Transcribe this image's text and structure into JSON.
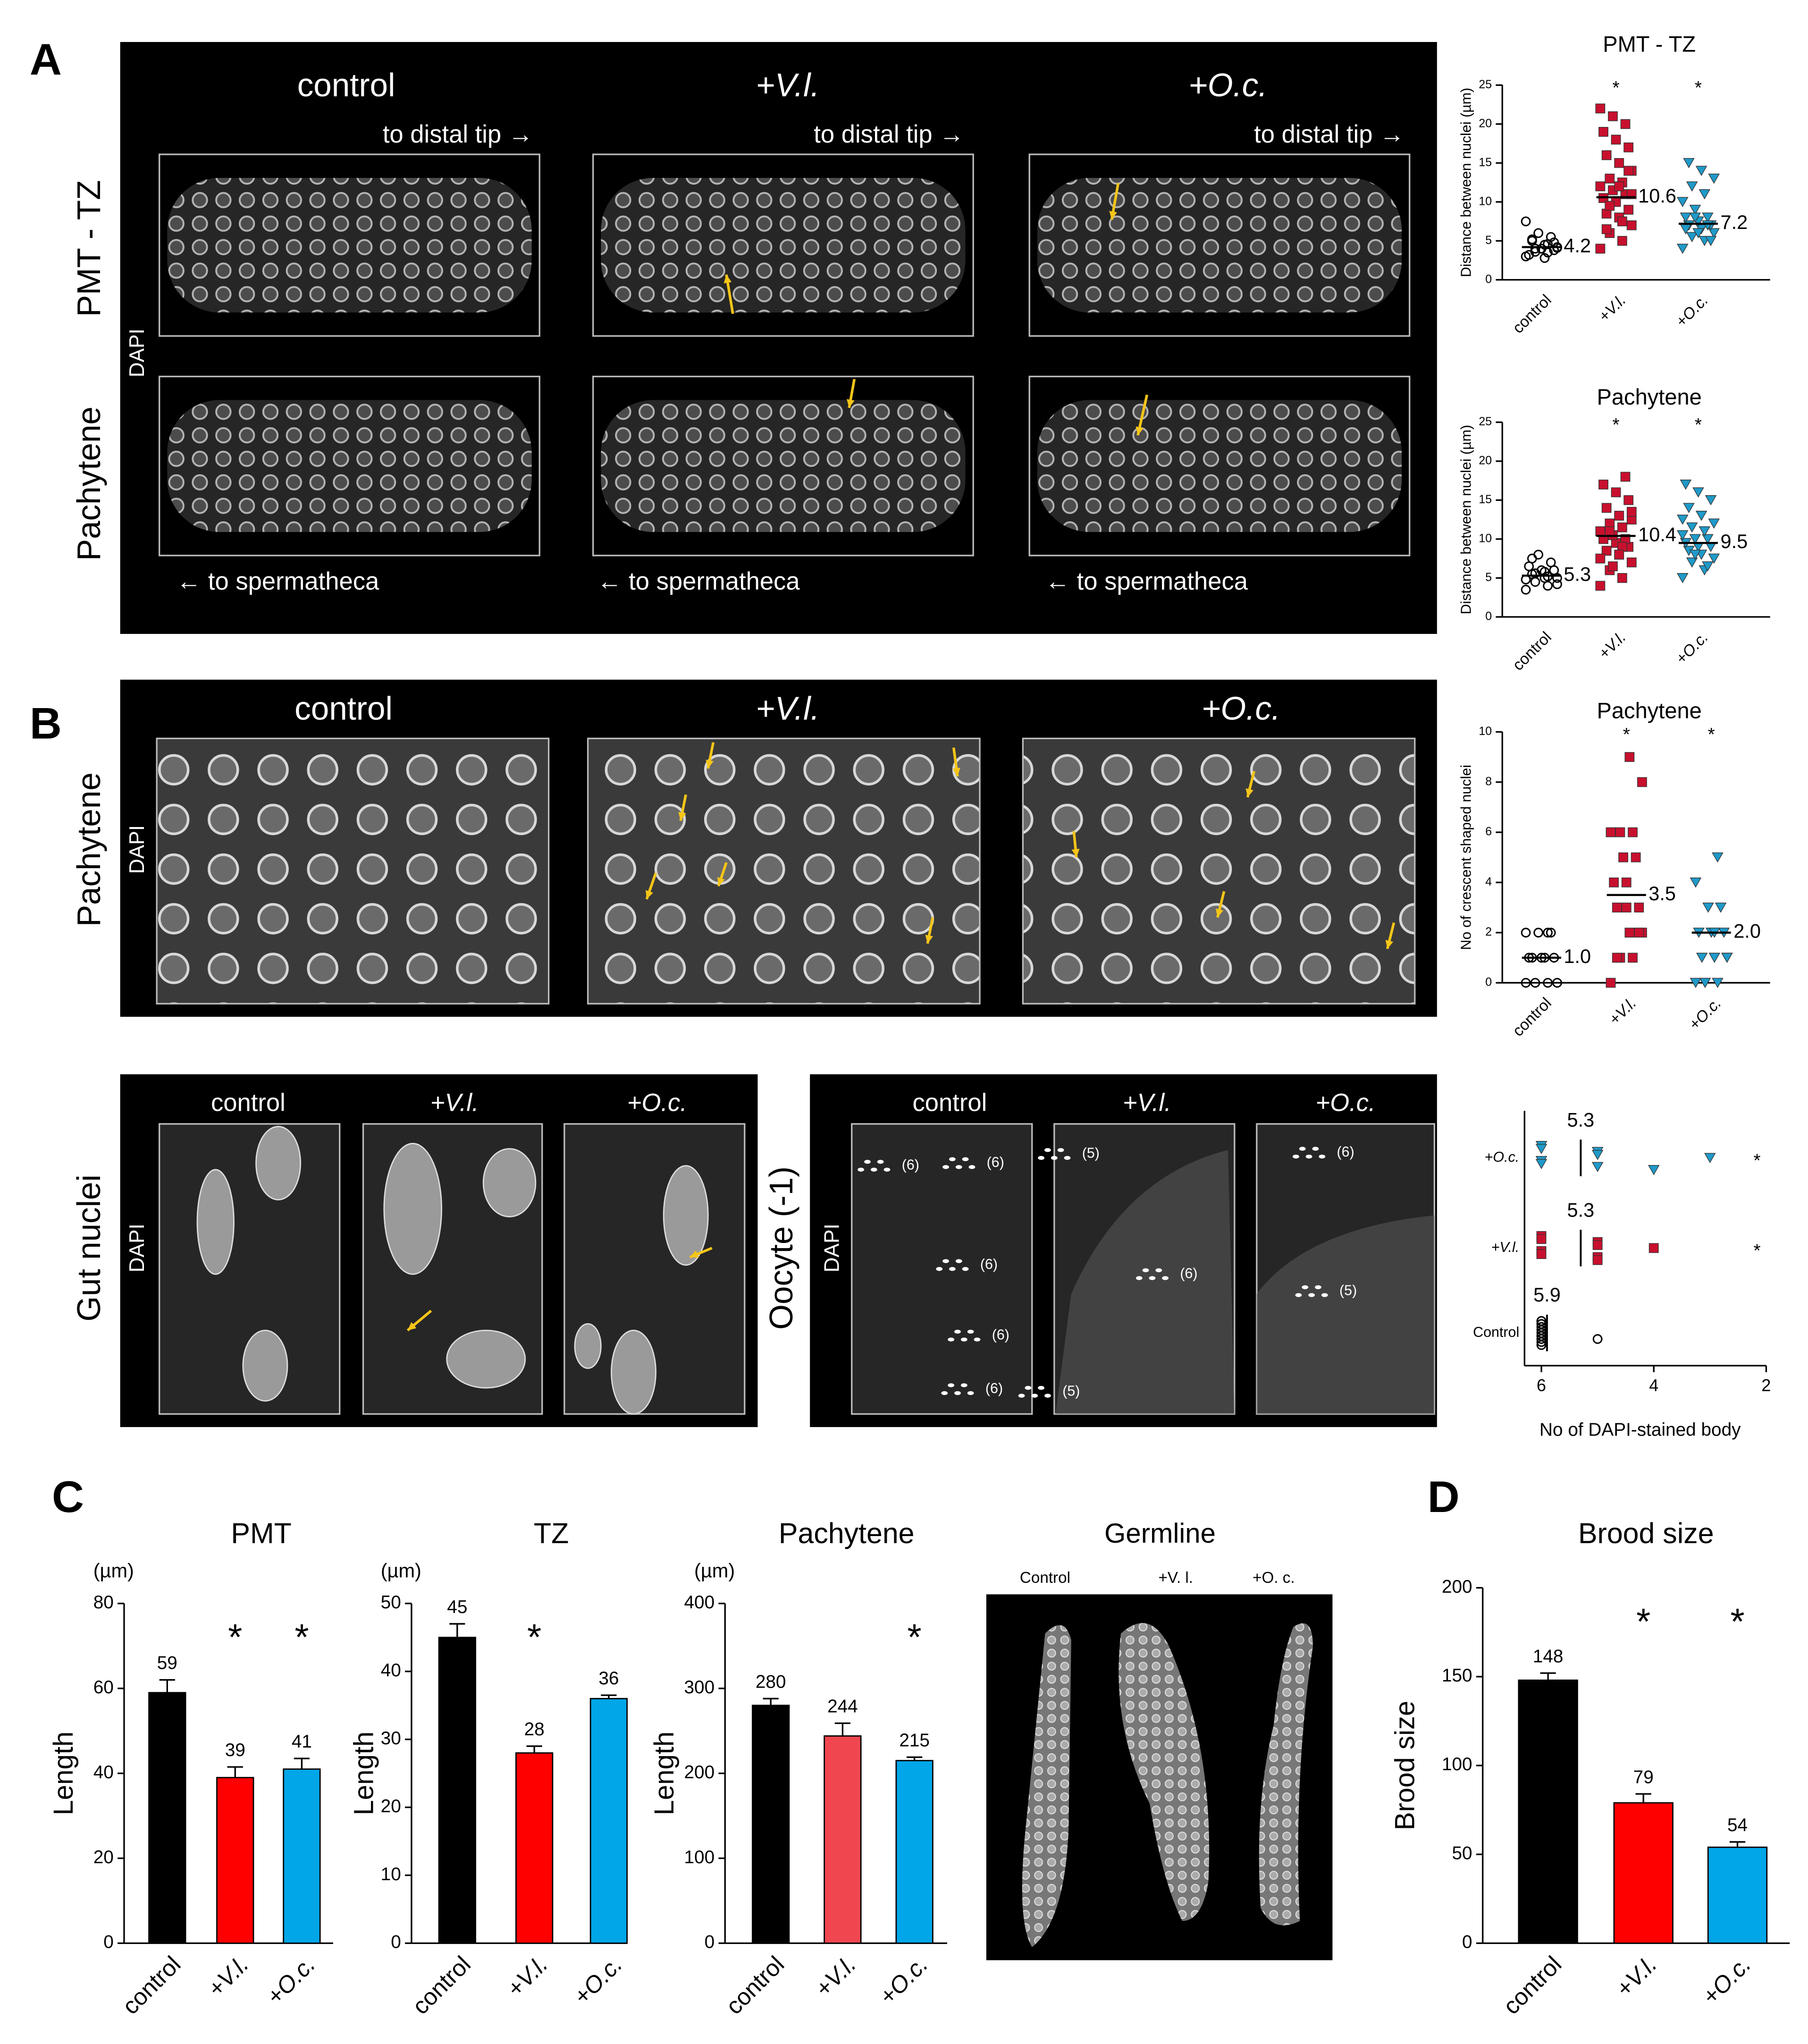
{
  "figure": {
    "letters": [
      "A",
      "B",
      "C",
      "D"
    ],
    "a": {
      "columns": [
        "control",
        "+V.l.",
        "+O.c."
      ],
      "distal": [
        "to distal tip →",
        "to distal tip →",
        "to distal tip →"
      ],
      "proximal": [
        "← to spermatheca",
        "← to spermatheca",
        "← to spermatheca"
      ],
      "rows": [
        "PMT - TZ",
        "Pachytene"
      ],
      "stain": "DAPI"
    },
    "b": {
      "columns": [
        "control",
        "+V.l.",
        "+O.c."
      ],
      "row": "Pachytene",
      "stain": "DAPI"
    },
    "gut": {
      "columns": [
        "control",
        "+V.l.",
        "+O.c."
      ],
      "row": "Gut nuclei",
      "stain": "DAPI"
    },
    "oocyte": {
      "columns": [
        "control",
        "+V.l.",
        "+O.c."
      ],
      "row": "Oocyte (-1)",
      "stain": "DAPI",
      "counts": [
        "(6)",
        "(6)",
        "(6)",
        "(6)",
        "(6)",
        "(5)",
        "(6)",
        "(5)",
        "(6)",
        "(5)"
      ]
    },
    "germline": {
      "title": "Germline",
      "columns": [
        "Control",
        "+V. l.",
        "+O. c."
      ]
    }
  },
  "chart_data": [
    {
      "type": "strip",
      "title": "PMT - TZ",
      "ylabel": "Distance between nuclei (µm)",
      "categories": [
        "control",
        "+V.l.",
        "+O.c."
      ],
      "points": [
        [
          3,
          3.5,
          4,
          4.2,
          4.5,
          5,
          3.8,
          4,
          3.2,
          5.5,
          6,
          7.5,
          4.6,
          3.6,
          4.1,
          2.8,
          5.2,
          4.8
        ],
        [
          4,
          5,
          6,
          7,
          8,
          8.5,
          9,
          10,
          10.5,
          11,
          11.5,
          12,
          12.5,
          13,
          14,
          15,
          16,
          17,
          18,
          19,
          20,
          21,
          22,
          7.5,
          9.5,
          11,
          12,
          6.5,
          14
        ],
        [
          4,
          5,
          5.5,
          6,
          6.5,
          7,
          7,
          7.5,
          8,
          8,
          9,
          10,
          11,
          12,
          13,
          14,
          15,
          5,
          6,
          6.5,
          7,
          8
        ]
      ],
      "means": [
        4.2,
        10.6,
        7.2
      ],
      "markers": [
        "circle",
        "square",
        "triangle-down"
      ],
      "colors": [
        "#000000",
        "#c8102e",
        "#1f9ac9"
      ],
      "significance": [
        null,
        "*",
        "*"
      ],
      "ylim": [
        0,
        25
      ],
      "yticks": [
        0,
        5,
        10,
        15,
        20,
        25
      ]
    },
    {
      "type": "strip",
      "title": "Pachytene",
      "ylabel": "Distance between nuclei (µm)",
      "categories": [
        "control",
        "+V.l.",
        "+O.c."
      ],
      "points": [
        [
          3.5,
          4,
          4.5,
          5,
          5,
          5.5,
          6,
          6,
          6.5,
          7,
          8,
          4.8,
          5.2,
          5.6,
          4.2,
          5.8,
          7.5
        ],
        [
          4,
          5,
          6,
          7,
          8,
          8.5,
          9,
          9.5,
          10,
          10,
          10.5,
          11,
          11.5,
          12,
          12.5,
          13,
          14,
          15,
          16,
          17,
          18,
          6.5,
          7.5,
          9,
          11,
          13.5,
          8
        ],
        [
          5,
          6,
          7,
          7.5,
          8,
          8.5,
          9,
          9,
          9.5,
          10,
          10,
          10.5,
          11,
          11.5,
          12,
          13,
          14,
          15,
          16,
          17,
          6.5,
          8,
          12.5
        ]
      ],
      "means": [
        5.3,
        10.4,
        9.5
      ],
      "markers": [
        "circle",
        "square",
        "triangle-down"
      ],
      "colors": [
        "#000000",
        "#c8102e",
        "#1f9ac9"
      ],
      "significance": [
        null,
        "*",
        "*"
      ],
      "ylim": [
        0,
        25
      ],
      "yticks": [
        0,
        5,
        10,
        15,
        20,
        25
      ]
    },
    {
      "type": "strip",
      "title": "Pachytene",
      "ylabel": "No of crescent shaped nuclei",
      "categories": [
        "control",
        "+V.l.",
        "+O.c."
      ],
      "points": [
        [
          0,
          0,
          0,
          0,
          1,
          1,
          1,
          1,
          1,
          2,
          2,
          2,
          2
        ],
        [
          0,
          1,
          1,
          2,
          2,
          3,
          3,
          4,
          4,
          5,
          5,
          6,
          6,
          6,
          8,
          9,
          1,
          2,
          3
        ],
        [
          0,
          0,
          0,
          1,
          1,
          1,
          2,
          2,
          2,
          3,
          3,
          4,
          5,
          0,
          1,
          2
        ]
      ],
      "means": [
        1,
        3.5,
        2
      ],
      "value_labels": [
        "1.0",
        "3.5",
        "2.0"
      ],
      "markers": [
        "circle",
        "square",
        "triangle-down"
      ],
      "colors": [
        "#000000",
        "#c8102e",
        "#1f9ac9"
      ],
      "significance": [
        null,
        "*",
        "*"
      ],
      "ylim": [
        0,
        10
      ],
      "yticks": [
        0,
        2,
        4,
        6,
        8,
        10
      ]
    },
    {
      "type": "strip_h",
      "xlabel": "No of DAPI-stained body",
      "categories": [
        "Control",
        "+V.l.",
        "+O.c."
      ],
      "points": [
        [
          6,
          6,
          6,
          6,
          6,
          6,
          6,
          6,
          6,
          6,
          6,
          6,
          5
        ],
        [
          6,
          6,
          6,
          6,
          5,
          5,
          5,
          5,
          4
        ],
        [
          6,
          6,
          6,
          6,
          5,
          5,
          5,
          4,
          3
        ]
      ],
      "means": [
        5.9,
        5.3,
        5.3
      ],
      "markers": [
        "circle",
        "square",
        "triangle-down"
      ],
      "colors": [
        "#000000",
        "#c8102e",
        "#1f9ac9"
      ],
      "significance": [
        null,
        "*",
        "*"
      ],
      "xlim": [
        6.3,
        2
      ],
      "xticks": [
        6,
        4,
        2
      ]
    },
    {
      "type": "bar",
      "title": "PMT",
      "unit": "(µm)",
      "ylabel": "Length",
      "categories": [
        "control",
        "+V.l.",
        "+O.c."
      ],
      "values": [
        59,
        39,
        41
      ],
      "errors": [
        3,
        2.5,
        2.5
      ],
      "colors": [
        "#000000",
        "#ff0000",
        "#00a6e8"
      ],
      "significance": [
        null,
        "*",
        "*"
      ],
      "ylim": [
        0,
        80
      ],
      "yticks": [
        0,
        20,
        40,
        60,
        80
      ]
    },
    {
      "type": "bar",
      "title": "TZ",
      "unit": "(µm)",
      "ylabel": "Length",
      "categories": [
        "control",
        "+V.l.",
        "+O.c."
      ],
      "values": [
        45,
        28,
        36
      ],
      "errors": [
        2,
        1,
        0.5
      ],
      "colors": [
        "#000000",
        "#ff0000",
        "#00a6e8"
      ],
      "significance": [
        null,
        "*",
        null
      ],
      "ylim": [
        0,
        50
      ],
      "yticks": [
        0,
        10,
        20,
        30,
        40,
        50
      ]
    },
    {
      "type": "bar",
      "title": "Pachytene",
      "unit": "(µm)",
      "ylabel": "Length",
      "categories": [
        "control",
        "+V.l.",
        "+O.c."
      ],
      "values": [
        280,
        244,
        215
      ],
      "errors": [
        8,
        15,
        4
      ],
      "colors": [
        "#000000",
        "#f0464f",
        "#00a6e8"
      ],
      "significance": [
        null,
        null,
        "*"
      ],
      "ylim": [
        0,
        400
      ],
      "yticks": [
        0,
        100,
        200,
        300,
        400
      ]
    },
    {
      "type": "bar",
      "title": "Brood size",
      "ylabel": "Brood size",
      "categories": [
        "control",
        "+V.l.",
        "+O.c."
      ],
      "values": [
        148,
        79,
        54
      ],
      "errors": [
        4,
        5,
        3
      ],
      "colors": [
        "#000000",
        "#ff0000",
        "#00a6e8"
      ],
      "significance": [
        null,
        "*",
        "*"
      ],
      "ylim": [
        0,
        200
      ],
      "yticks": [
        0,
        50,
        100,
        150,
        200
      ]
    }
  ]
}
